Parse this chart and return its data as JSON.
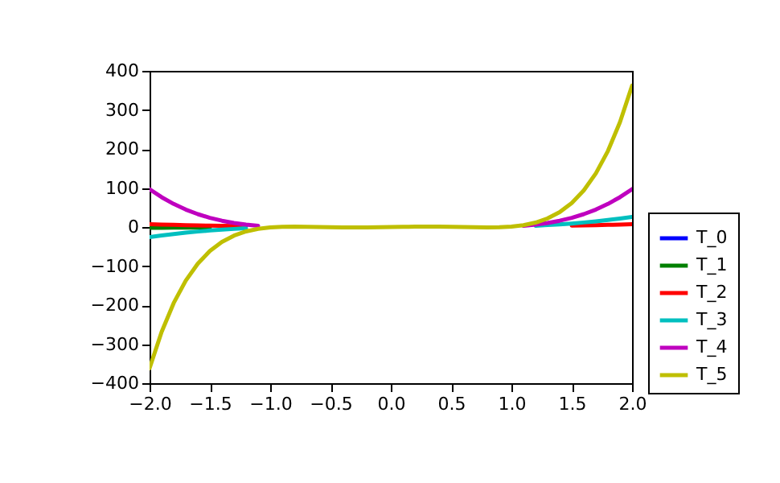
{
  "chart_data": {
    "type": "line",
    "x": [
      -2,
      -1.9,
      -1.8,
      -1.7,
      -1.6,
      -1.5,
      -1.4,
      -1.3,
      -1.2,
      -1.1,
      -1,
      -0.9,
      -0.8,
      -0.7,
      -0.6,
      -0.5,
      -0.4,
      -0.3,
      -0.2,
      -0.1,
      0,
      0.1,
      0.2,
      0.3,
      0.4,
      0.5,
      0.6,
      0.7,
      0.8,
      0.9,
      1,
      1.1,
      1.2,
      1.3,
      1.4,
      1.5,
      1.6,
      1.7,
      1.8,
      1.9,
      2
    ],
    "series": [
      {
        "name": "T_0",
        "color": "#0000ff",
        "values": [
          null,
          null,
          null,
          null,
          null,
          null,
          null,
          null,
          null,
          null,
          null,
          null,
          null,
          null,
          null,
          null,
          null,
          null,
          null,
          null,
          null,
          null,
          null,
          null,
          null,
          null,
          null,
          null,
          null,
          null,
          null,
          null,
          null,
          null,
          null,
          null,
          null,
          null,
          null,
          null,
          null
        ]
      },
      {
        "name": "T_1",
        "color": "#008000",
        "values": [
          -2,
          -1.9,
          -1.8,
          -1.7,
          -1.6,
          -1.5,
          null,
          null,
          null,
          null,
          null,
          null,
          null,
          null,
          null,
          null,
          null,
          null,
          null,
          null,
          null,
          null,
          null,
          null,
          null,
          null,
          null,
          null,
          null,
          null,
          null,
          null,
          null,
          null,
          null,
          null,
          null,
          null,
          null,
          null,
          null
        ]
      },
      {
        "name": "T_2",
        "color": "#ff0000",
        "values": [
          7,
          6.2,
          5.5,
          4.8,
          4.1,
          3.5,
          2.9,
          2.4,
          1.9,
          null,
          null,
          null,
          null,
          null,
          null,
          null,
          null,
          null,
          null,
          null,
          null,
          null,
          null,
          null,
          null,
          null,
          null,
          null,
          null,
          null,
          null,
          null,
          null,
          null,
          null,
          3.5,
          4.1,
          4.8,
          5.5,
          6.2,
          7
        ]
      },
      {
        "name": "T_3",
        "color": "#00bfbf",
        "values": [
          -26,
          -21.7,
          -17.9,
          -14.6,
          -11.6,
          -9,
          -6.8,
          -4.9,
          -3.3,
          null,
          null,
          null,
          null,
          null,
          null,
          null,
          null,
          null,
          null,
          null,
          null,
          null,
          null,
          null,
          null,
          null,
          null,
          null,
          null,
          null,
          null,
          null,
          3.3,
          4.9,
          6.8,
          9,
          11.6,
          14.6,
          17.9,
          21.7,
          26
        ]
      },
      {
        "name": "T_4",
        "color": "#bf00bf",
        "values": [
          97,
          76.4,
          59.1,
          44.7,
          33,
          23.5,
          16.1,
          10.3,
          6.1,
          3,
          null,
          null,
          null,
          null,
          null,
          null,
          null,
          null,
          null,
          null,
          null,
          null,
          null,
          null,
          null,
          null,
          null,
          null,
          null,
          null,
          null,
          3,
          6.1,
          10.3,
          16.1,
          23.5,
          33,
          44.7,
          59.1,
          76.4,
          97
        ]
      },
      {
        "name": "T_5",
        "color": "#bfbf00",
        "values": [
          -362,
          -268.5,
          -194.7,
          -137.4,
          -93.9,
          -61.5,
          -38.2,
          -22,
          -11.3,
          -4.7,
          -1,
          0.6,
          1,
          0.7,
          0.1,
          -0.5,
          -0.9,
          -1,
          -0.9,
          -0.5,
          0,
          0.5,
          0.9,
          1,
          0.9,
          0.5,
          -0.1,
          -0.7,
          -1,
          -0.6,
          1,
          4.7,
          11.3,
          22,
          38.2,
          61.5,
          93.9,
          137.4,
          194.7,
          268.5,
          362
        ]
      }
    ],
    "xlim": [
      -2,
      2
    ],
    "xticks": [
      {
        "value": -2,
        "label": "−2.0"
      },
      -1.5,
      {
        "value": -1,
        "label": "−1.0"
      },
      -0.5,
      {
        "value": 0,
        "label": "0.0"
      },
      0.5,
      {
        "value": 1,
        "label": "1.0"
      },
      1.5,
      {
        "value": 2,
        "label": "2.0"
      }
    ],
    "ylim": [
      -400,
      400
    ],
    "yticks": [
      -400,
      -300,
      -200,
      -100,
      0,
      100,
      200,
      300,
      400
    ],
    "legend": "bottom right",
    "line_style": "solid"
  }
}
